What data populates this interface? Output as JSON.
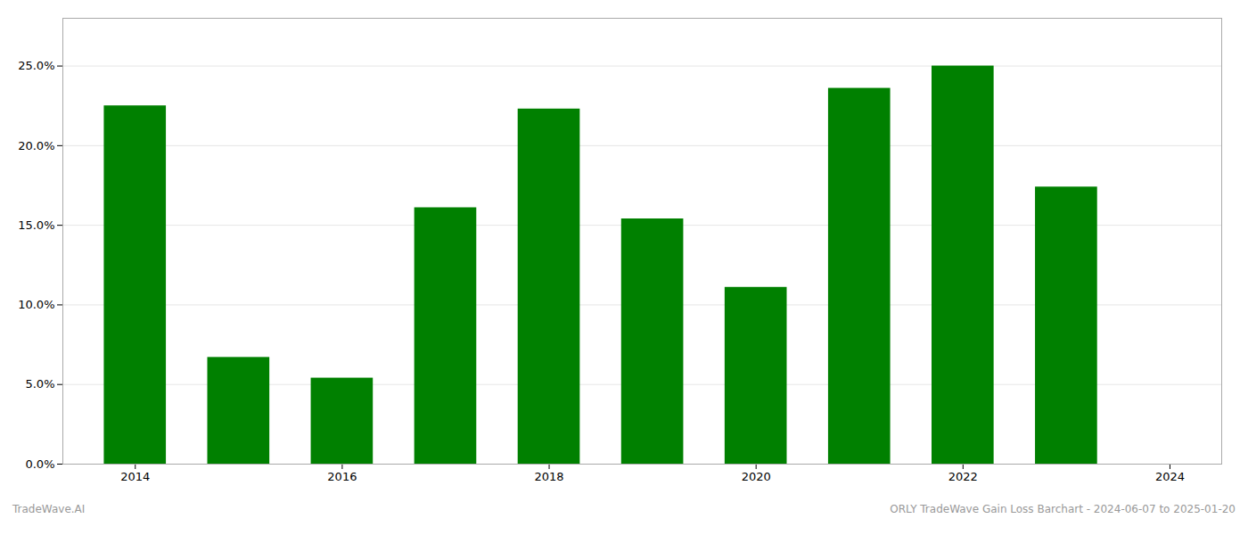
{
  "chart_data": {
    "type": "bar",
    "x": [
      2014,
      2015,
      2016,
      2017,
      2018,
      2019,
      2020,
      2021,
      2022,
      2023
    ],
    "values": [
      0.225,
      0.067,
      0.054,
      0.161,
      0.223,
      0.154,
      0.111,
      0.236,
      0.25,
      0.174
    ],
    "color": "#008000",
    "xlim": [
      2013.3,
      2024.5
    ],
    "xticks": [
      2014,
      2016,
      2018,
      2020,
      2022,
      2024
    ],
    "ylim": [
      0,
      0.28
    ],
    "yticks": [
      {
        "value": 0.0,
        "label": "0.0%"
      },
      {
        "value": 0.05,
        "label": "5.0%"
      },
      {
        "value": 0.1,
        "label": "10.0%"
      },
      {
        "value": 0.15,
        "label": "15.0%"
      },
      {
        "value": 0.2,
        "label": "20.0%"
      },
      {
        "value": 0.25,
        "label": "25.0%"
      }
    ],
    "grid": true,
    "annotations": [
      "TradeWave.AI",
      "ORLY TradeWave Gain Loss Barchart - 2024-06-07 to 2025-01-20"
    ]
  }
}
